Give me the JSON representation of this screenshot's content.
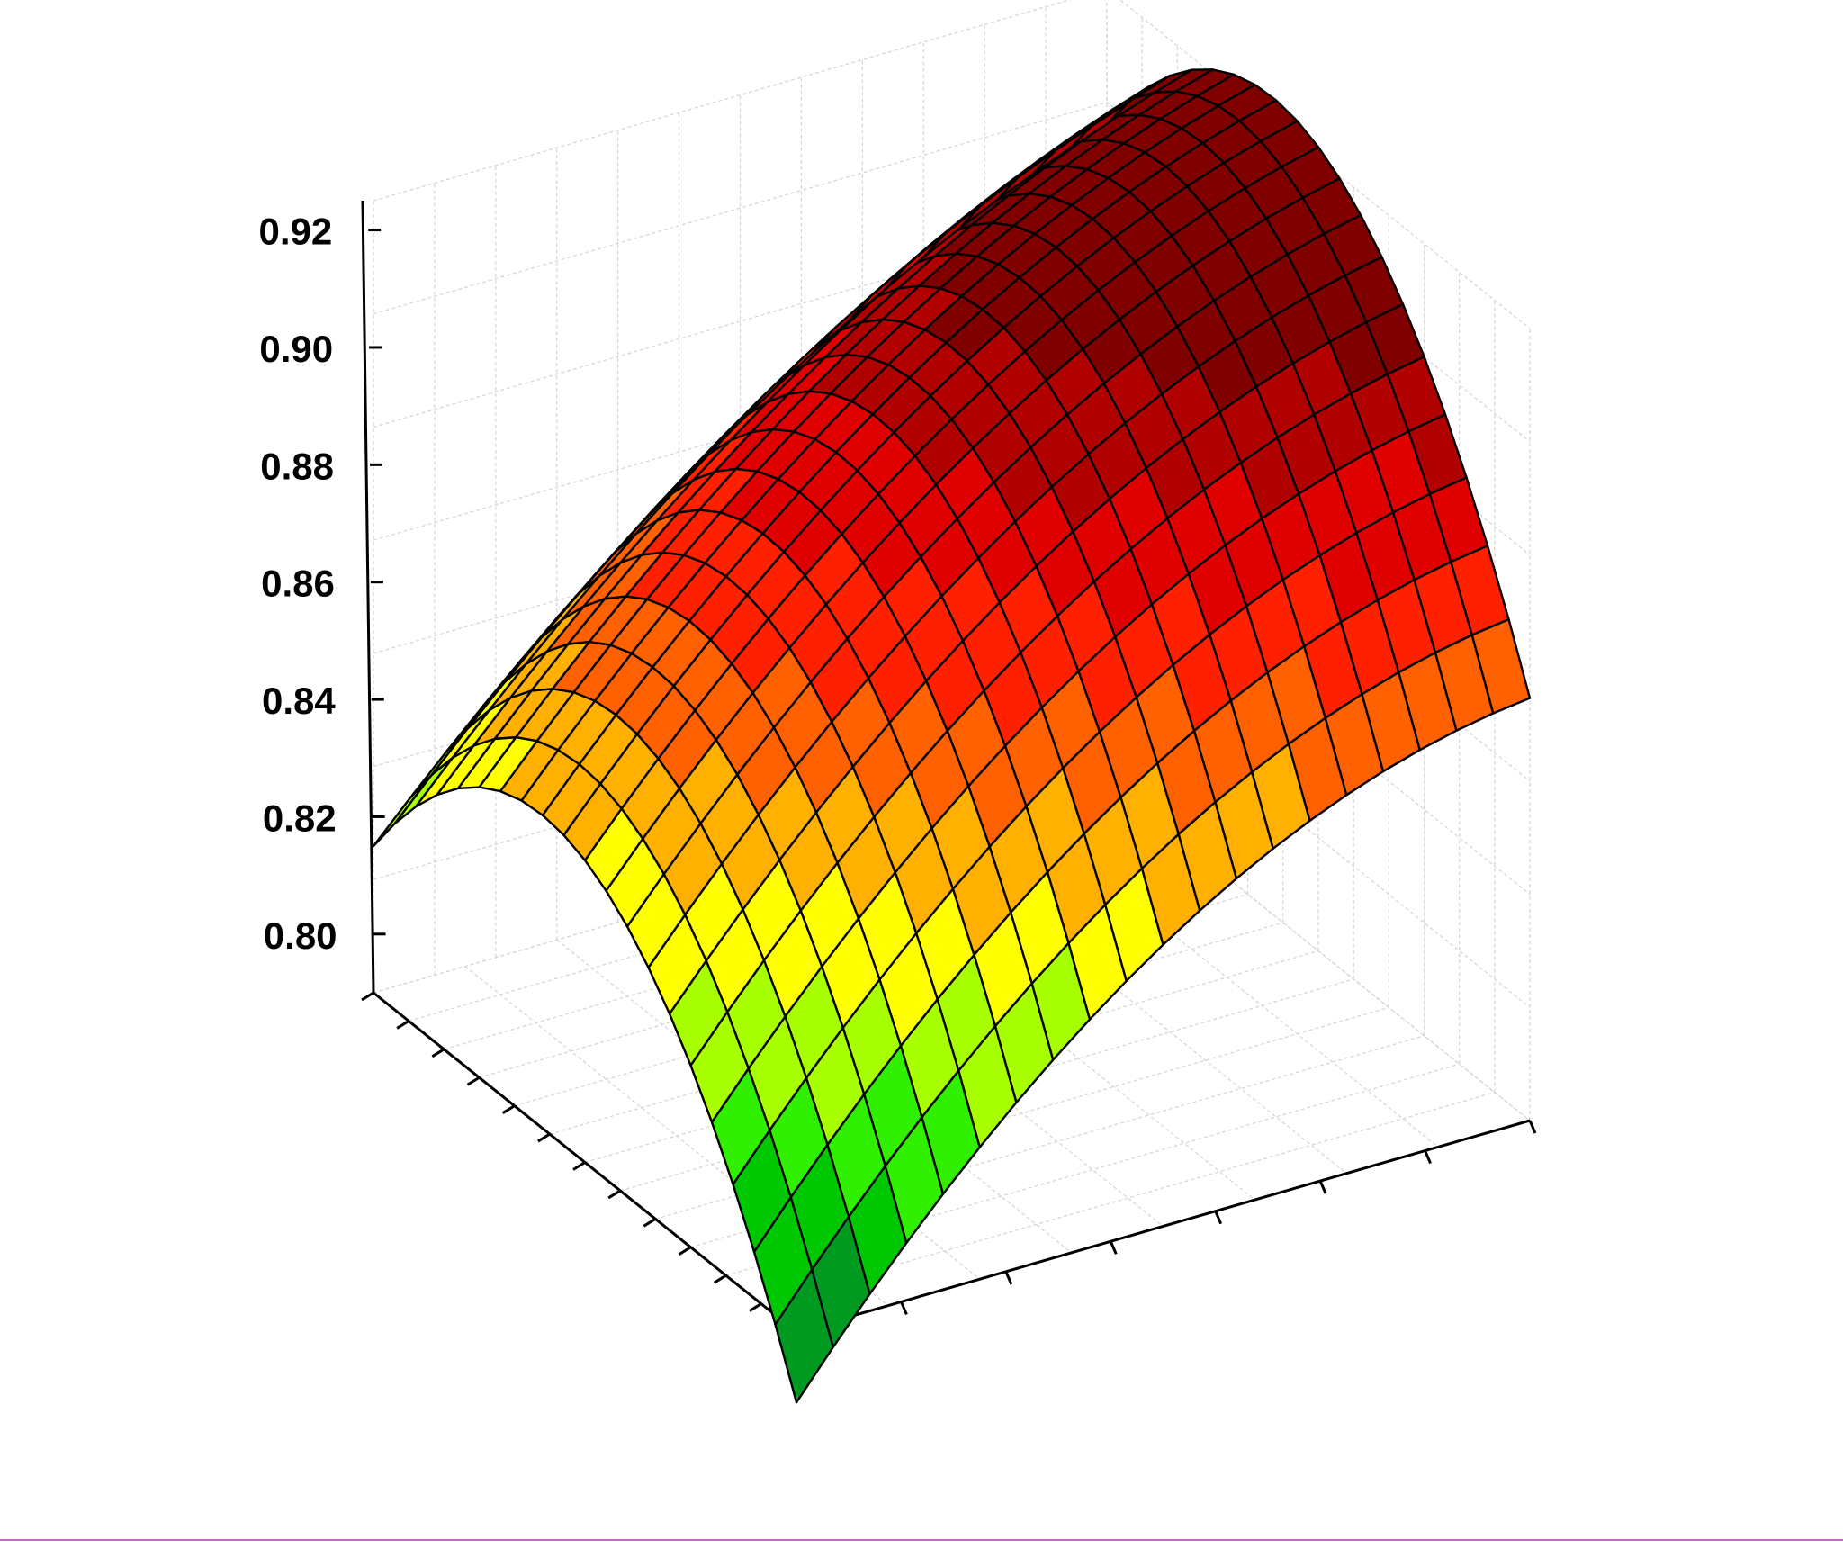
{
  "chart_data": {
    "type": "surface3d",
    "title": "",
    "zlabel": "",
    "xlabel": "",
    "ylabel": "",
    "z_ticks": [
      "0.80",
      "0.82",
      "0.84",
      "0.86",
      "0.88",
      "0.90",
      "0.92"
    ],
    "zlim": [
      0.79,
      0.925
    ],
    "x_ticks": [
      "",
      "",
      "",
      "",
      "",
      "",
      "",
      "",
      "",
      "",
      "",
      "",
      ""
    ],
    "y_ticks": [
      "",
      "",
      "",
      "",
      "",
      "",
      "",
      ""
    ],
    "x_range": [
      0,
      1
    ],
    "y_range": [
      0,
      1
    ],
    "grid": true,
    "surface": {
      "formula": "quadratic",
      "z_at_corners": {
        "x0_y0": 0.815,
        "x1_y0": 0.778,
        "x0_y1": 0.902,
        "x1_y1": 0.862
      },
      "z_max": 0.918,
      "grid_divisions_x": 20,
      "grid_divisions_y": 20
    },
    "color_scale": [
      "#006a30",
      "#009a20",
      "#00c800",
      "#30f000",
      "#a8ff00",
      "#ffff00",
      "#ffb000",
      "#ff6000",
      "#ff2000",
      "#e00000",
      "#b00000",
      "#800000"
    ]
  }
}
